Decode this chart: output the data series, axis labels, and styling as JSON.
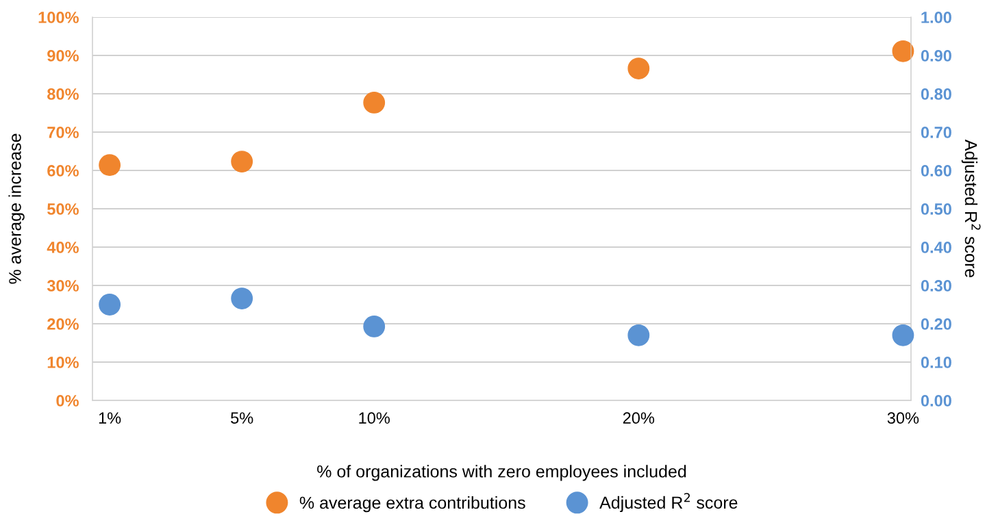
{
  "chart_data": {
    "type": "scatter",
    "categories": [
      "1%",
      "5%",
      "10%",
      null,
      "20%",
      null,
      "30%"
    ],
    "xlabel": "% of organizations with zero employees included",
    "ylabel": "% average increase",
    "y2label": "Adjusted R$^{2}$ score",
    "series": [
      {
        "name": "% average extra contributions",
        "color": "#f0852d",
        "values": [
          61.4,
          62.3,
          77.7,
          null,
          86.6,
          null,
          91.1
        ]
      },
      {
        "name": "Adjusted R$^{2}$ score",
        "color": "#5b93d3",
        "axis": "y2",
        "values": [
          0.25,
          0.266,
          0.193,
          null,
          0.17,
          null,
          0.17
        ]
      }
    ],
    "ylim": [
      0,
      100
    ],
    "yticks": [
      {
        "value": 0,
        "label": "0%"
      },
      {
        "value": 10,
        "label": "10%"
      },
      {
        "value": 20,
        "label": "20%"
      },
      {
        "value": 30,
        "label": "30%"
      },
      {
        "value": 40,
        "label": "40%"
      },
      {
        "value": 50,
        "label": "50%"
      },
      {
        "value": 60,
        "label": "60%"
      },
      {
        "value": 70,
        "label": "70%"
      },
      {
        "value": 80,
        "label": "80%"
      },
      {
        "value": 90,
        "label": "90%"
      },
      {
        "value": 100,
        "label": "100%"
      }
    ],
    "y2lim": [
      0,
      1
    ],
    "y2ticks": [
      {
        "value": 0,
        "label": "0.00"
      },
      {
        "value": 0.1,
        "label": "0.10"
      },
      {
        "value": 0.2,
        "label": "0.20"
      },
      {
        "value": 0.3,
        "label": "0.30"
      },
      {
        "value": 0.4,
        "label": "0.40"
      },
      {
        "value": 0.5,
        "label": "0.50"
      },
      {
        "value": 0.6,
        "label": "0.60"
      },
      {
        "value": 0.7,
        "label": "0.70"
      },
      {
        "value": 0.8,
        "label": "0.80"
      },
      {
        "value": 0.9,
        "label": "0.90"
      },
      {
        "value": 1,
        "label": "1.00"
      }
    ],
    "grid": "y",
    "legend": "bottom",
    "marker": "circle"
  }
}
